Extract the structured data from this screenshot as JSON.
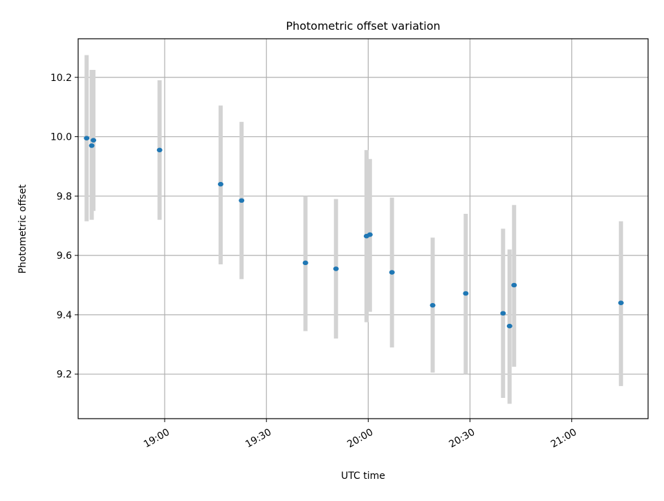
{
  "chart_data": {
    "type": "scatter",
    "title": "Photometric offset variation",
    "xlabel": "UTC time",
    "ylabel": "Photometric offset",
    "x_axis_type": "time",
    "xlim": [
      "18:34:30",
      "21:22:30"
    ],
    "ylim": [
      9.05,
      10.33
    ],
    "x_ticks": [
      "19:00",
      "19:30",
      "20:00",
      "20:30",
      "21:00"
    ],
    "y_ticks": [
      9.2,
      9.4,
      9.6,
      9.8,
      10.0,
      10.2
    ],
    "y_tick_labels": [
      "9.2",
      "9.4",
      "9.6",
      "9.8",
      "10.0",
      "10.2"
    ],
    "grid": true,
    "marker_color": "#1f77b4",
    "errorbar_color": "#d3d3d3",
    "points": [
      {
        "x": "18:37:00",
        "y": 9.995,
        "err_low": 9.715,
        "err_high": 10.275
      },
      {
        "x": "18:38:30",
        "y": 9.97,
        "err_low": 9.72,
        "err_high": 10.225
      },
      {
        "x": "18:39:00",
        "y": 9.988,
        "err_low": 9.75,
        "err_high": 10.225
      },
      {
        "x": "18:58:30",
        "y": 9.955,
        "err_low": 9.72,
        "err_high": 10.19
      },
      {
        "x": "19:16:30",
        "y": 9.84,
        "err_low": 9.57,
        "err_high": 10.105
      },
      {
        "x": "19:22:40",
        "y": 9.785,
        "err_low": 9.52,
        "err_high": 10.05
      },
      {
        "x": "19:41:30",
        "y": 9.575,
        "err_low": 9.345,
        "err_high": 9.8
      },
      {
        "x": "19:50:30",
        "y": 9.555,
        "err_low": 9.32,
        "err_high": 9.79
      },
      {
        "x": "19:59:30",
        "y": 9.665,
        "err_low": 9.375,
        "err_high": 9.955
      },
      {
        "x": "20:00:30",
        "y": 9.67,
        "err_low": 9.41,
        "err_high": 9.925
      },
      {
        "x": "20:07:00",
        "y": 9.543,
        "err_low": 9.29,
        "err_high": 9.795
      },
      {
        "x": "20:19:00",
        "y": 9.432,
        "err_low": 9.205,
        "err_high": 9.66
      },
      {
        "x": "20:28:45",
        "y": 9.472,
        "err_low": 9.2,
        "err_high": 9.74
      },
      {
        "x": "20:39:45",
        "y": 9.405,
        "err_low": 9.12,
        "err_high": 9.69
      },
      {
        "x": "20:41:40",
        "y": 9.362,
        "err_low": 9.1,
        "err_high": 9.62
      },
      {
        "x": "20:43:00",
        "y": 9.5,
        "err_low": 9.225,
        "err_high": 9.77
      },
      {
        "x": "21:14:30",
        "y": 9.44,
        "err_low": 9.16,
        "err_high": 9.715
      }
    ]
  }
}
